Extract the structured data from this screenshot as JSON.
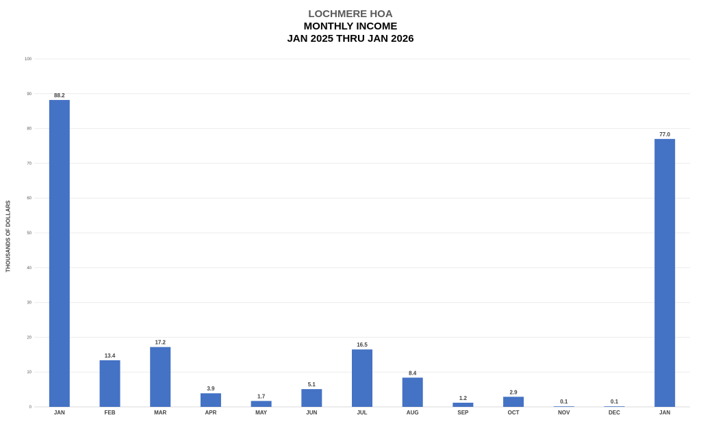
{
  "title": {
    "line1": "LOCHMERE HOA",
    "line2": "MONTHLY INCOME",
    "line3": "JAN 2025 THRU JAN 2026"
  },
  "chart_data": {
    "type": "bar",
    "title": "LOCHMERE HOA MONTHLY INCOME JAN 2025 THRU JAN 2026",
    "xlabel": "",
    "ylabel": "THOUSANDS OF DOLLARS",
    "categories": [
      "JAN",
      "FEB",
      "MAR",
      "APR",
      "MAY",
      "JUN",
      "JUL",
      "AUG",
      "SEP",
      "OCT",
      "NOV",
      "DEC",
      "JAN"
    ],
    "values": [
      88.2,
      13.4,
      17.2,
      3.9,
      1.7,
      5.1,
      16.5,
      8.4,
      1.2,
      2.9,
      0.1,
      0.1,
      77.0
    ],
    "value_labels": [
      "88.2",
      "13.4",
      "17.2",
      "3.9",
      "1.7",
      "5.1",
      "16.5",
      "8.4",
      "1.2",
      "2.9",
      "0.1",
      "0.1",
      "77.0"
    ],
    "ylim": [
      0,
      100
    ],
    "yticks": [
      0,
      10,
      20,
      30,
      40,
      50,
      60,
      70,
      80,
      90,
      100
    ],
    "grid": true,
    "legend": "none",
    "bar_color": "#4472c4"
  }
}
